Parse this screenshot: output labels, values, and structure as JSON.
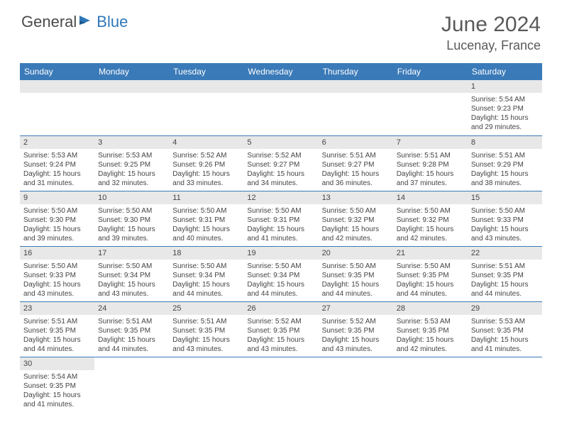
{
  "brand": {
    "text_general": "General",
    "text_blue": "Blue",
    "logo_color": "#2f77b8",
    "text_color_general": "#4a4a4a",
    "text_color_blue": "#2f77b8"
  },
  "header": {
    "month_title": "June 2024",
    "location": "Lucenay, France"
  },
  "colors": {
    "header_row_bg": "#3a7ab8",
    "header_row_text": "#ffffff",
    "day_bar_bg": "#e8e8e8",
    "cell_border": "#3a7ab8",
    "body_text": "#444444",
    "page_bg": "#ffffff"
  },
  "typography": {
    "title_fontsize": 30,
    "location_fontsize": 18,
    "weekday_fontsize": 12,
    "daynum_fontsize": 11,
    "body_fontsize": 10
  },
  "calendar": {
    "weekdays": [
      "Sunday",
      "Monday",
      "Tuesday",
      "Wednesday",
      "Thursday",
      "Friday",
      "Saturday"
    ],
    "weeks": [
      [
        null,
        null,
        null,
        null,
        null,
        null,
        {
          "day": "1",
          "sunrise": "Sunrise: 5:54 AM",
          "sunset": "Sunset: 9:23 PM",
          "daylight1": "Daylight: 15 hours",
          "daylight2": "and 29 minutes."
        }
      ],
      [
        {
          "day": "2",
          "sunrise": "Sunrise: 5:53 AM",
          "sunset": "Sunset: 9:24 PM",
          "daylight1": "Daylight: 15 hours",
          "daylight2": "and 31 minutes."
        },
        {
          "day": "3",
          "sunrise": "Sunrise: 5:53 AM",
          "sunset": "Sunset: 9:25 PM",
          "daylight1": "Daylight: 15 hours",
          "daylight2": "and 32 minutes."
        },
        {
          "day": "4",
          "sunrise": "Sunrise: 5:52 AM",
          "sunset": "Sunset: 9:26 PM",
          "daylight1": "Daylight: 15 hours",
          "daylight2": "and 33 minutes."
        },
        {
          "day": "5",
          "sunrise": "Sunrise: 5:52 AM",
          "sunset": "Sunset: 9:27 PM",
          "daylight1": "Daylight: 15 hours",
          "daylight2": "and 34 minutes."
        },
        {
          "day": "6",
          "sunrise": "Sunrise: 5:51 AM",
          "sunset": "Sunset: 9:27 PM",
          "daylight1": "Daylight: 15 hours",
          "daylight2": "and 36 minutes."
        },
        {
          "day": "7",
          "sunrise": "Sunrise: 5:51 AM",
          "sunset": "Sunset: 9:28 PM",
          "daylight1": "Daylight: 15 hours",
          "daylight2": "and 37 minutes."
        },
        {
          "day": "8",
          "sunrise": "Sunrise: 5:51 AM",
          "sunset": "Sunset: 9:29 PM",
          "daylight1": "Daylight: 15 hours",
          "daylight2": "and 38 minutes."
        }
      ],
      [
        {
          "day": "9",
          "sunrise": "Sunrise: 5:50 AM",
          "sunset": "Sunset: 9:30 PM",
          "daylight1": "Daylight: 15 hours",
          "daylight2": "and 39 minutes."
        },
        {
          "day": "10",
          "sunrise": "Sunrise: 5:50 AM",
          "sunset": "Sunset: 9:30 PM",
          "daylight1": "Daylight: 15 hours",
          "daylight2": "and 39 minutes."
        },
        {
          "day": "11",
          "sunrise": "Sunrise: 5:50 AM",
          "sunset": "Sunset: 9:31 PM",
          "daylight1": "Daylight: 15 hours",
          "daylight2": "and 40 minutes."
        },
        {
          "day": "12",
          "sunrise": "Sunrise: 5:50 AM",
          "sunset": "Sunset: 9:31 PM",
          "daylight1": "Daylight: 15 hours",
          "daylight2": "and 41 minutes."
        },
        {
          "day": "13",
          "sunrise": "Sunrise: 5:50 AM",
          "sunset": "Sunset: 9:32 PM",
          "daylight1": "Daylight: 15 hours",
          "daylight2": "and 42 minutes."
        },
        {
          "day": "14",
          "sunrise": "Sunrise: 5:50 AM",
          "sunset": "Sunset: 9:32 PM",
          "daylight1": "Daylight: 15 hours",
          "daylight2": "and 42 minutes."
        },
        {
          "day": "15",
          "sunrise": "Sunrise: 5:50 AM",
          "sunset": "Sunset: 9:33 PM",
          "daylight1": "Daylight: 15 hours",
          "daylight2": "and 43 minutes."
        }
      ],
      [
        {
          "day": "16",
          "sunrise": "Sunrise: 5:50 AM",
          "sunset": "Sunset: 9:33 PM",
          "daylight1": "Daylight: 15 hours",
          "daylight2": "and 43 minutes."
        },
        {
          "day": "17",
          "sunrise": "Sunrise: 5:50 AM",
          "sunset": "Sunset: 9:34 PM",
          "daylight1": "Daylight: 15 hours",
          "daylight2": "and 43 minutes."
        },
        {
          "day": "18",
          "sunrise": "Sunrise: 5:50 AM",
          "sunset": "Sunset: 9:34 PM",
          "daylight1": "Daylight: 15 hours",
          "daylight2": "and 44 minutes."
        },
        {
          "day": "19",
          "sunrise": "Sunrise: 5:50 AM",
          "sunset": "Sunset: 9:34 PM",
          "daylight1": "Daylight: 15 hours",
          "daylight2": "and 44 minutes."
        },
        {
          "day": "20",
          "sunrise": "Sunrise: 5:50 AM",
          "sunset": "Sunset: 9:35 PM",
          "daylight1": "Daylight: 15 hours",
          "daylight2": "and 44 minutes."
        },
        {
          "day": "21",
          "sunrise": "Sunrise: 5:50 AM",
          "sunset": "Sunset: 9:35 PM",
          "daylight1": "Daylight: 15 hours",
          "daylight2": "and 44 minutes."
        },
        {
          "day": "22",
          "sunrise": "Sunrise: 5:51 AM",
          "sunset": "Sunset: 9:35 PM",
          "daylight1": "Daylight: 15 hours",
          "daylight2": "and 44 minutes."
        }
      ],
      [
        {
          "day": "23",
          "sunrise": "Sunrise: 5:51 AM",
          "sunset": "Sunset: 9:35 PM",
          "daylight1": "Daylight: 15 hours",
          "daylight2": "and 44 minutes."
        },
        {
          "day": "24",
          "sunrise": "Sunrise: 5:51 AM",
          "sunset": "Sunset: 9:35 PM",
          "daylight1": "Daylight: 15 hours",
          "daylight2": "and 44 minutes."
        },
        {
          "day": "25",
          "sunrise": "Sunrise: 5:51 AM",
          "sunset": "Sunset: 9:35 PM",
          "daylight1": "Daylight: 15 hours",
          "daylight2": "and 43 minutes."
        },
        {
          "day": "26",
          "sunrise": "Sunrise: 5:52 AM",
          "sunset": "Sunset: 9:35 PM",
          "daylight1": "Daylight: 15 hours",
          "daylight2": "and 43 minutes."
        },
        {
          "day": "27",
          "sunrise": "Sunrise: 5:52 AM",
          "sunset": "Sunset: 9:35 PM",
          "daylight1": "Daylight: 15 hours",
          "daylight2": "and 43 minutes."
        },
        {
          "day": "28",
          "sunrise": "Sunrise: 5:53 AM",
          "sunset": "Sunset: 9:35 PM",
          "daylight1": "Daylight: 15 hours",
          "daylight2": "and 42 minutes."
        },
        {
          "day": "29",
          "sunrise": "Sunrise: 5:53 AM",
          "sunset": "Sunset: 9:35 PM",
          "daylight1": "Daylight: 15 hours",
          "daylight2": "and 41 minutes."
        }
      ],
      [
        {
          "day": "30",
          "sunrise": "Sunrise: 5:54 AM",
          "sunset": "Sunset: 9:35 PM",
          "daylight1": "Daylight: 15 hours",
          "daylight2": "and 41 minutes."
        },
        null,
        null,
        null,
        null,
        null,
        null
      ]
    ]
  }
}
